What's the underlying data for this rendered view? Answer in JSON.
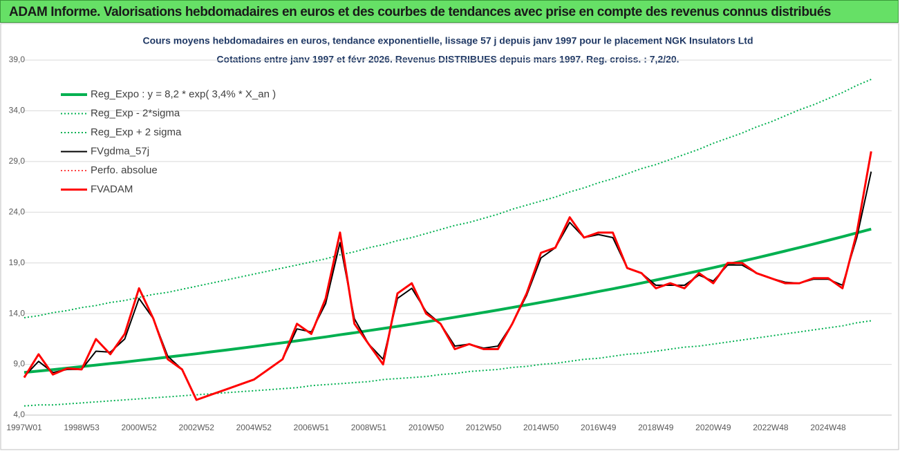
{
  "banner": "ADAM Informe. Valorisations hebdomadaires en euros et des courbes de tendances avec prise en compte des revenus connus distribués",
  "chart_data": {
    "type": "line",
    "title": "Cours moyens hebdomadaires en euros, tendance exponentielle, lissage 57 j depuis janv 1997 pour le placement NGK Insulators Ltd",
    "subtitle": "Cotations entre janv 1997 et févr 2026. Revenus DISTRIBUES depuis mars 1997. Reg. croiss. : 7,2/20.",
    "categories": [
      "1997W01",
      null,
      null,
      null,
      "1998W53",
      null,
      null,
      null,
      "2000W52",
      null,
      null,
      null,
      "2002W52",
      null,
      null,
      null,
      "2004W52",
      null,
      null,
      null,
      "2006W51",
      null,
      null,
      null,
      "2008W51",
      null,
      null,
      null,
      "2010W50",
      null,
      null,
      null,
      "2012W50",
      null,
      null,
      null,
      "2014W50",
      null,
      null,
      null,
      "2016W49",
      null,
      null,
      null,
      "2018W49",
      null,
      null,
      null,
      "2020W49",
      null,
      null,
      null,
      "2022W48",
      null,
      null,
      null,
      "2024W48",
      null,
      null,
      null
    ],
    "ylim": [
      4,
      39
    ],
    "yticks": [
      {
        "value": 4,
        "label": "4,0"
      },
      {
        "value": 9,
        "label": "9,0"
      },
      {
        "value": 14,
        "label": "14,0"
      },
      {
        "value": 19,
        "label": "19,0"
      },
      {
        "value": 24,
        "label": "24,0"
      },
      {
        "value": 29,
        "label": "29,0"
      },
      {
        "value": 34,
        "label": "34,0"
      },
      {
        "value": 39,
        "label": "39,0"
      }
    ],
    "grid": true,
    "legend": "upper-left",
    "series": [
      {
        "name": "Reg_Expo : y = 8,2 * exp( 3,4% *  X_an )",
        "color": "#00b050",
        "style": "solid",
        "width": 4,
        "values": [
          8.2,
          8.34,
          8.48,
          8.63,
          8.78,
          8.93,
          9.08,
          9.23,
          9.39,
          9.55,
          9.72,
          9.88,
          10.05,
          10.23,
          10.4,
          10.58,
          10.76,
          10.95,
          11.13,
          11.32,
          11.52,
          11.71,
          11.92,
          12.12,
          12.33,
          12.54,
          12.75,
          12.97,
          13.19,
          13.42,
          13.65,
          13.88,
          14.12,
          14.36,
          14.61,
          14.86,
          15.11,
          15.37,
          15.64,
          15.9,
          16.18,
          16.45,
          16.73,
          17.02,
          17.31,
          17.61,
          17.91,
          18.22,
          18.53,
          18.85,
          19.17,
          19.5,
          19.83,
          20.17,
          20.52,
          20.87,
          21.23,
          21.59,
          21.96,
          22.34
        ]
      },
      {
        "name": "Reg_Exp - 2*sigma",
        "color": "#00b050",
        "style": "dotted",
        "width": 2,
        "values": [
          4.9,
          5.0,
          5.0,
          5.1,
          5.2,
          5.3,
          5.4,
          5.5,
          5.6,
          5.7,
          5.8,
          5.9,
          6.0,
          6.1,
          6.2,
          6.3,
          6.4,
          6.5,
          6.6,
          6.7,
          6.9,
          7.0,
          7.1,
          7.2,
          7.3,
          7.5,
          7.6,
          7.7,
          7.8,
          8.0,
          8.1,
          8.3,
          8.4,
          8.5,
          8.7,
          8.8,
          9.0,
          9.1,
          9.3,
          9.5,
          9.6,
          9.8,
          10.0,
          10.1,
          10.3,
          10.5,
          10.7,
          10.8,
          11.0,
          11.2,
          11.4,
          11.6,
          11.8,
          12.0,
          12.2,
          12.4,
          12.6,
          12.8,
          13.1,
          13.3
        ]
      },
      {
        "name": "Reg_Exp + 2 sigma",
        "color": "#00b050",
        "style": "dotted",
        "width": 2,
        "values": [
          13.6,
          13.8,
          14.1,
          14.3,
          14.6,
          14.8,
          15.1,
          15.3,
          15.6,
          15.9,
          16.1,
          16.4,
          16.7,
          17.0,
          17.3,
          17.6,
          17.9,
          18.2,
          18.5,
          18.8,
          19.1,
          19.4,
          19.8,
          20.1,
          20.5,
          20.8,
          21.2,
          21.5,
          21.9,
          22.3,
          22.7,
          23.0,
          23.4,
          23.8,
          24.3,
          24.7,
          25.1,
          25.5,
          26.0,
          26.4,
          26.9,
          27.3,
          27.8,
          28.3,
          28.7,
          29.2,
          29.7,
          30.2,
          30.8,
          31.3,
          31.8,
          32.4,
          32.9,
          33.5,
          34.1,
          34.6,
          35.2,
          35.8,
          36.5,
          37.1
        ]
      },
      {
        "name": "FVgdma_57j",
        "color": "#000000",
        "style": "solid",
        "width": 2,
        "values": [
          7.8,
          9.3,
          8.2,
          8.5,
          8.5,
          10.3,
          10.2,
          11.5,
          15.5,
          13.5,
          9.8,
          8.5,
          5.5,
          6.0,
          6.5,
          7.0,
          7.5,
          8.5,
          9.5,
          12.5,
          12.2,
          15.0,
          21.0,
          13.5,
          11.0,
          9.5,
          15.5,
          16.5,
          14.2,
          13.0,
          10.8,
          11.0,
          10.6,
          10.8,
          13.0,
          15.8,
          19.5,
          20.5,
          23.0,
          21.5,
          21.8,
          21.5,
          18.5,
          18.0,
          16.8,
          16.8,
          16.8,
          17.8,
          17.2,
          18.8,
          18.8,
          18.0,
          17.5,
          17.1,
          17.0,
          17.4,
          17.4,
          16.8,
          21.5,
          28.0
        ]
      },
      {
        "name": "Perfo. absolue",
        "color": "#ff0000",
        "style": "dotted",
        "width": 1.5,
        "values": [
          null,
          null,
          null,
          null,
          null,
          null,
          null,
          null,
          null,
          null,
          null,
          null,
          null,
          null,
          null,
          null,
          null,
          null,
          null,
          null,
          null,
          null,
          null,
          null,
          null,
          null,
          null,
          null,
          null,
          null,
          null,
          null,
          null,
          null,
          null,
          null,
          null,
          null,
          null,
          null,
          null,
          null,
          null,
          null,
          null,
          null,
          null,
          null,
          null,
          null,
          null,
          null,
          null,
          null,
          null,
          null,
          null,
          null,
          null,
          null
        ]
      },
      {
        "name": "FVADAM",
        "color": "#ff0000",
        "style": "solid",
        "width": 3,
        "values": [
          7.7,
          10.0,
          8.0,
          8.6,
          8.5,
          11.5,
          10.0,
          12.0,
          16.5,
          13.5,
          9.5,
          8.5,
          5.5,
          6.0,
          6.5,
          7.0,
          7.5,
          8.5,
          9.5,
          13.0,
          12.0,
          15.5,
          22.0,
          13.0,
          11.0,
          9.0,
          16.0,
          17.0,
          14.0,
          13.0,
          10.5,
          11.0,
          10.5,
          10.5,
          13.0,
          16.0,
          20.0,
          20.5,
          23.5,
          21.5,
          22.0,
          22.0,
          18.5,
          18.0,
          16.5,
          17.0,
          16.5,
          18.0,
          17.0,
          19.0,
          19.0,
          18.0,
          17.5,
          17.0,
          17.0,
          17.5,
          17.5,
          16.5,
          22.0,
          30.0
        ]
      }
    ]
  }
}
